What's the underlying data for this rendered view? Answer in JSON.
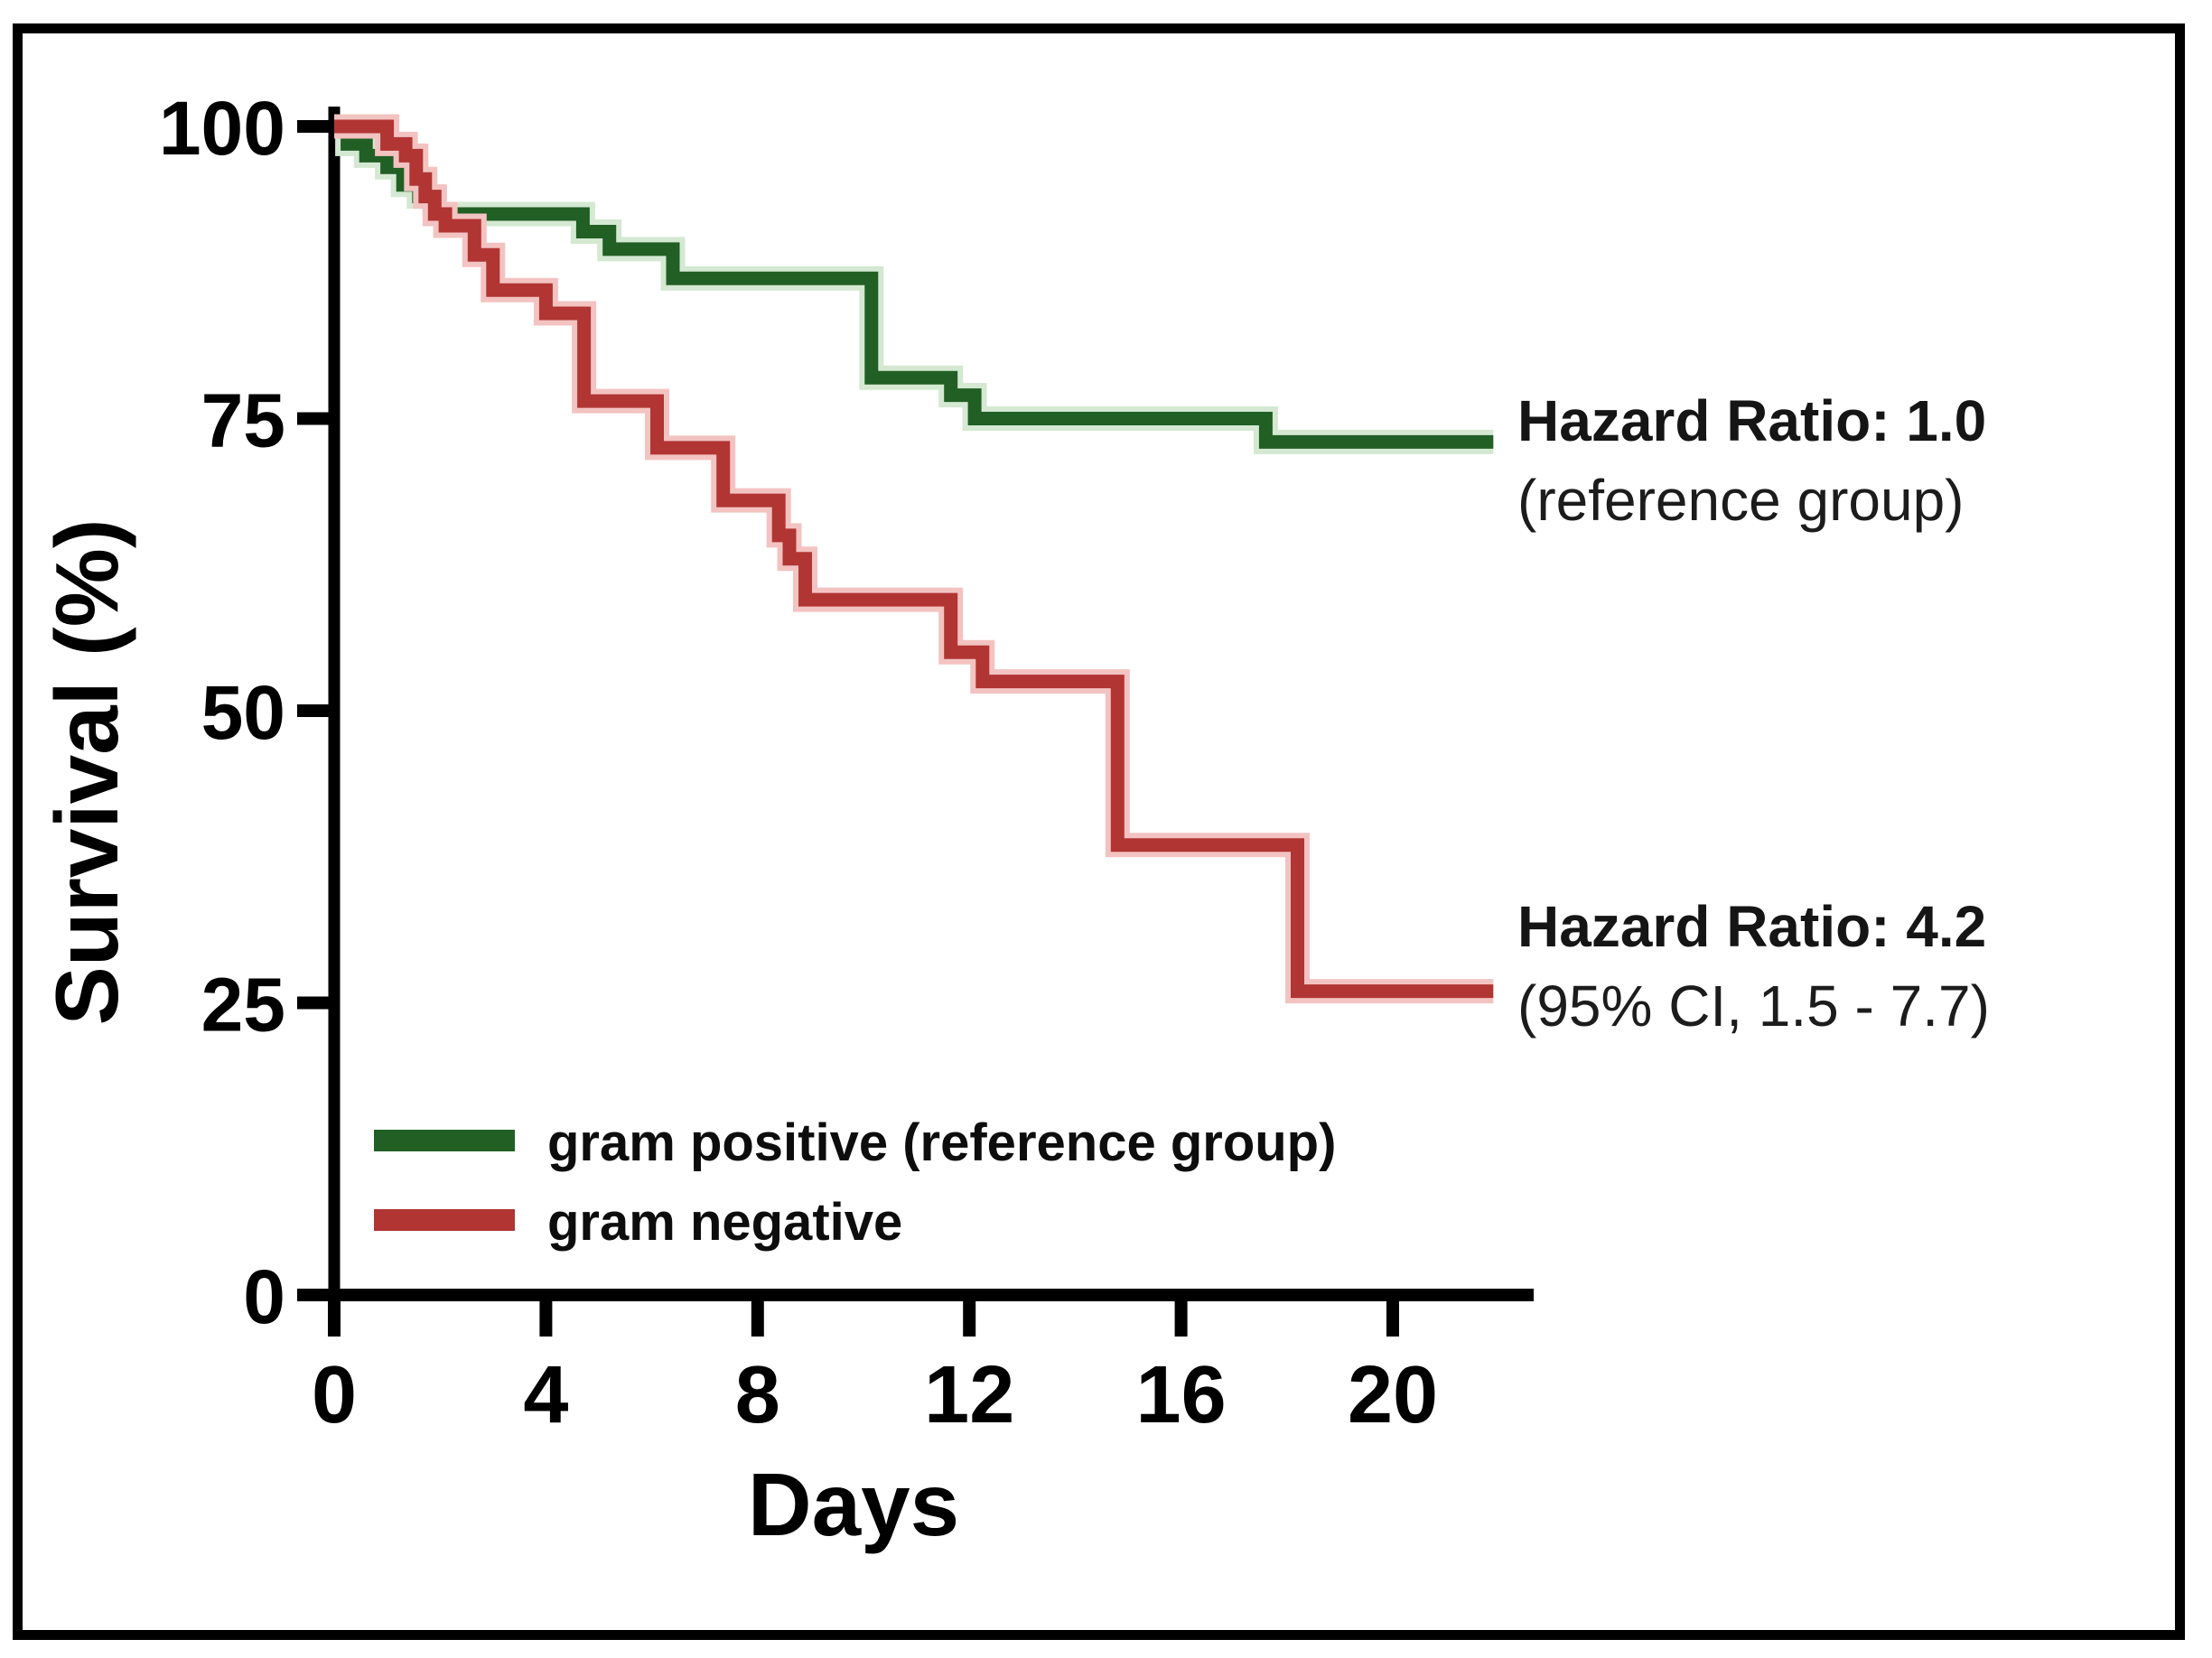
{
  "chart_data": {
    "type": "line",
    "subtype": "kaplan_meier_step",
    "title": "",
    "xlabel": "Days",
    "ylabel": "Survival (%)",
    "x_ticks": [
      "0",
      "4",
      "8",
      "12",
      "16",
      "20"
    ],
    "y_ticks": [
      "100",
      "75",
      "50",
      "25",
      "0"
    ],
    "xlim": [
      0,
      22.6
    ],
    "ylim": [
      0,
      100
    ],
    "grid": false,
    "legend_position": "lower-left-inside",
    "series": [
      {
        "name": "gram positive (reference group)",
        "color": "#215f25",
        "points": [
          [
            0,
            100
          ],
          [
            0.25,
            98.5
          ],
          [
            0.6,
            97.5
          ],
          [
            1.0,
            96.5
          ],
          [
            1.3,
            95
          ],
          [
            1.6,
            94
          ],
          [
            1.9,
            92.5
          ],
          [
            4.7,
            91
          ],
          [
            5.2,
            89.5
          ],
          [
            6.4,
            87
          ],
          [
            10.15,
            78.5
          ],
          [
            11.65,
            77
          ],
          [
            12.1,
            75
          ],
          [
            17.6,
            73
          ]
        ],
        "end_day": 21.9
      },
      {
        "name": "gram negative",
        "color": "#b03533",
        "points": [
          [
            0,
            100
          ],
          [
            1.0,
            98.5
          ],
          [
            1.35,
            97.5
          ],
          [
            1.55,
            95.5
          ],
          [
            1.72,
            94
          ],
          [
            1.9,
            92.5
          ],
          [
            2.1,
            91.5
          ],
          [
            2.65,
            89
          ],
          [
            3.0,
            86
          ],
          [
            4.0,
            84
          ],
          [
            4.72,
            76.5
          ],
          [
            6.1,
            72.5
          ],
          [
            7.35,
            68
          ],
          [
            8.4,
            65
          ],
          [
            8.6,
            63
          ],
          [
            8.9,
            59.5
          ],
          [
            11.65,
            55
          ],
          [
            12.25,
            52.5
          ],
          [
            14.8,
            38.5
          ],
          [
            18.2,
            26
          ]
        ],
        "end_day": 21.9
      }
    ],
    "annotations": [
      {
        "target": "gram-positive-curve",
        "line1": "Hazard Ratio: 1.0",
        "line2": "(reference group)"
      },
      {
        "target": "gram-negative-curve",
        "line1": "Hazard Ratio: 4.2",
        "line2": "(95% CI, 1.5 - 7.7)"
      }
    ]
  }
}
